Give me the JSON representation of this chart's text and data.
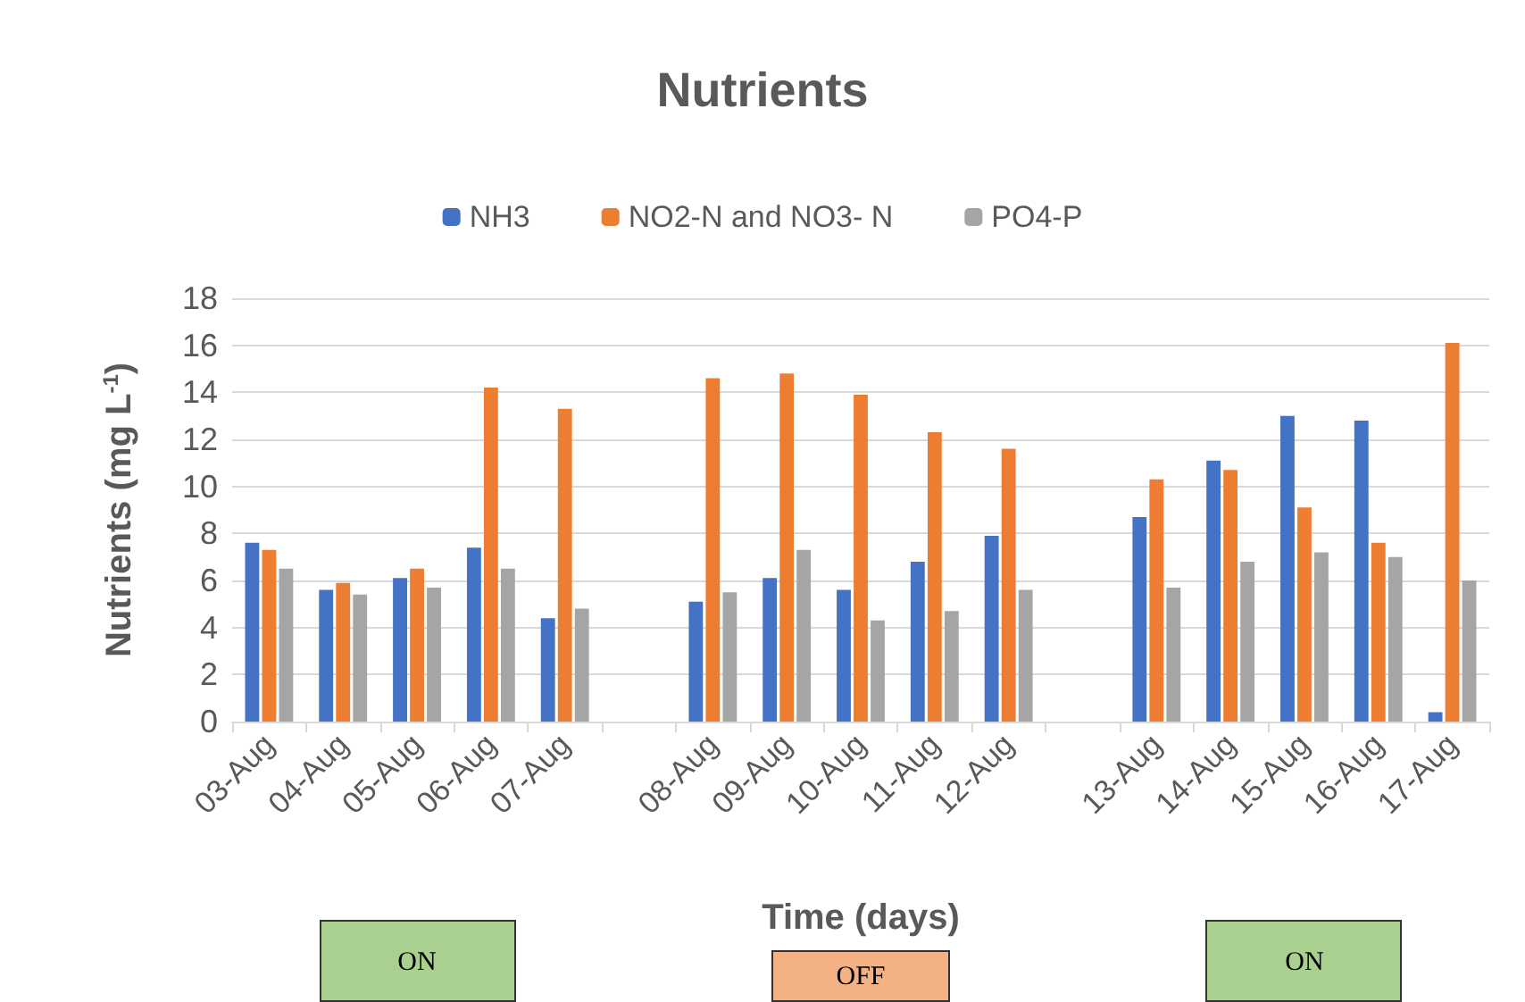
{
  "chart_data": {
    "type": "bar",
    "title": "Nutrients",
    "xlabel": "Time (days)",
    "ylabel": "Nutrients (mg L$^{-1}$)",
    "categories": [
      "03-Aug",
      "04-Aug",
      "05-Aug",
      "06-Aug",
      "07-Aug",
      null,
      "08-Aug",
      "09-Aug",
      "10-Aug",
      "11-Aug",
      "12-Aug",
      null,
      "13-Aug",
      "14-Aug",
      "15-Aug",
      "16-Aug",
      "17-Aug"
    ],
    "series": [
      {
        "name": "NH3",
        "color": "#4472c4",
        "values": [
          7.6,
          5.6,
          6.1,
          7.4,
          4.4,
          null,
          5.1,
          6.1,
          5.6,
          6.8,
          7.9,
          null,
          8.7,
          11.1,
          13.0,
          12.8,
          0.4
        ]
      },
      {
        "name": "NO2-N and NO3- N",
        "color": "#ed7d31",
        "values": [
          7.3,
          5.9,
          6.5,
          14.2,
          13.3,
          null,
          14.6,
          14.8,
          13.9,
          12.3,
          11.6,
          null,
          10.3,
          10.7,
          9.1,
          7.6,
          16.1
        ]
      },
      {
        "name": "PO4-P",
        "color": "#a5a5a5",
        "values": [
          6.5,
          5.4,
          5.7,
          6.5,
          4.8,
          null,
          5.5,
          7.3,
          4.3,
          4.7,
          5.6,
          null,
          5.7,
          6.8,
          7.2,
          7.0,
          6.0
        ]
      }
    ],
    "ylim": [
      0,
      18
    ],
    "yticks": [
      0,
      2,
      4,
      6,
      8,
      10,
      12,
      14,
      16,
      18
    ],
    "grid": "y",
    "legend": "top",
    "annotations": [
      "ON",
      "OFF",
      "ON"
    ]
  }
}
